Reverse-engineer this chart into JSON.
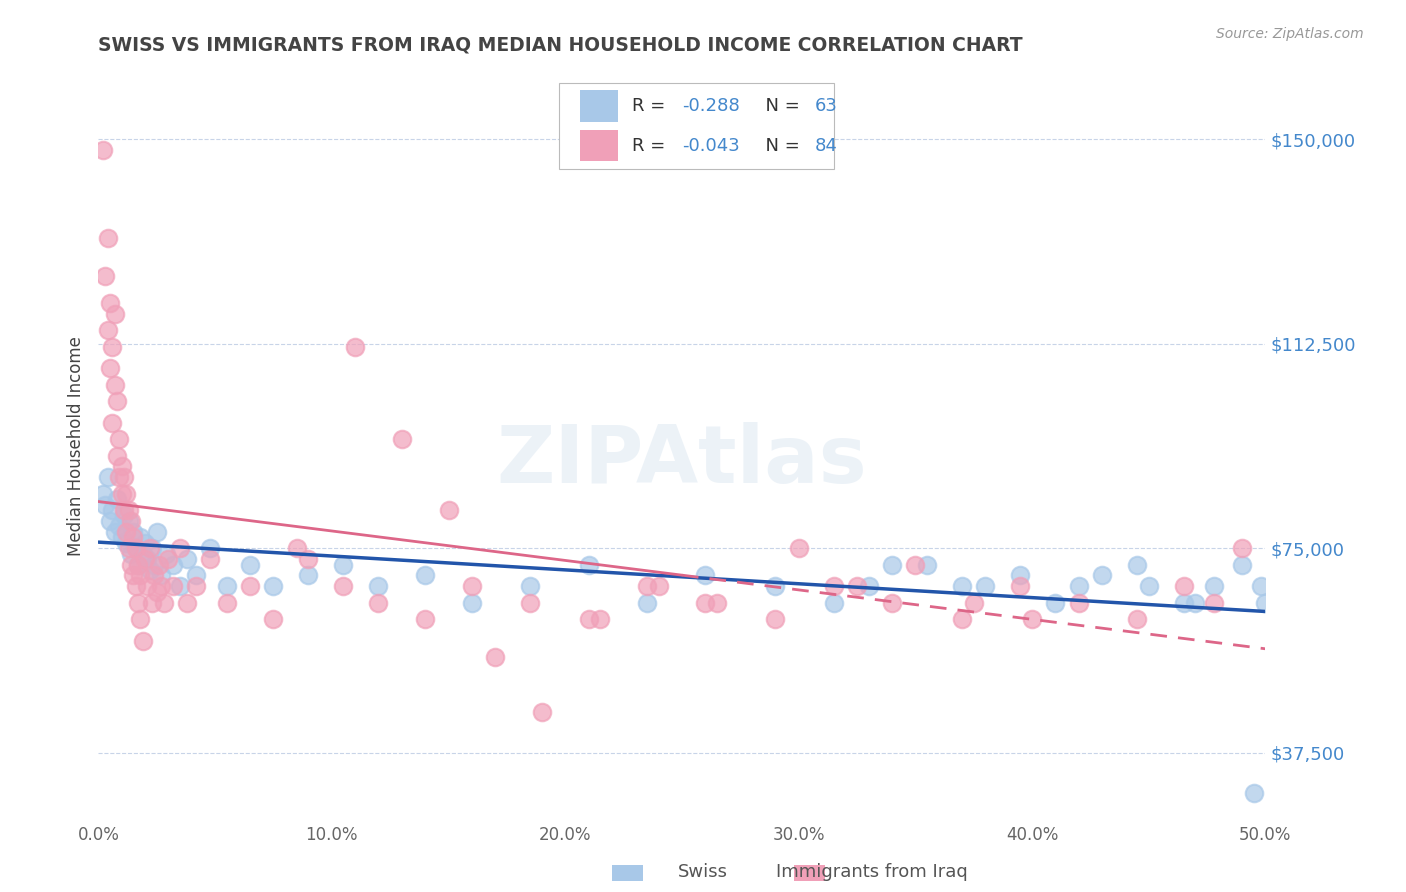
{
  "title": "SWISS VS IMMIGRANTS FROM IRAQ MEDIAN HOUSEHOLD INCOME CORRELATION CHART",
  "source": "Source: ZipAtlas.com",
  "ylabel": "Median Household Income",
  "xlim": [
    0.0,
    0.5
  ],
  "ylim": [
    25000,
    162500
  ],
  "yticks": [
    37500,
    75000,
    112500,
    150000
  ],
  "ytick_labels": [
    "$37,500",
    "$75,000",
    "$112,500",
    "$150,000"
  ],
  "xticks": [
    0.0,
    0.1,
    0.2,
    0.3,
    0.4,
    0.5
  ],
  "xtick_labels": [
    "0.0%",
    "10.0%",
    "20.0%",
    "30.0%",
    "40.0%",
    "50.0%"
  ],
  "swiss_color": "#a8c8e8",
  "iraq_color": "#f0a0b8",
  "swiss_line_color": "#2255aa",
  "iraq_line_color": "#dd6688",
  "watermark": "ZIPAtlas",
  "background_color": "#ffffff",
  "grid_color": "#c8d4e8",
  "title_color": "#444444",
  "axis_label_color": "#444444",
  "ytick_color": "#4488cc",
  "xtick_color": "#666666",
  "r_value_color": "#4488cc",
  "legend_text_color": "#333333",
  "swiss_x": [
    0.002,
    0.003,
    0.004,
    0.005,
    0.006,
    0.007,
    0.008,
    0.009,
    0.01,
    0.011,
    0.012,
    0.013,
    0.014,
    0.015,
    0.016,
    0.017,
    0.018,
    0.019,
    0.02,
    0.021,
    0.022,
    0.023,
    0.024,
    0.025,
    0.027,
    0.029,
    0.032,
    0.035,
    0.038,
    0.042,
    0.048,
    0.055,
    0.065,
    0.075,
    0.09,
    0.105,
    0.12,
    0.14,
    0.16,
    0.185,
    0.21,
    0.235,
    0.26,
    0.29,
    0.315,
    0.34,
    0.37,
    0.395,
    0.42,
    0.445,
    0.465,
    0.478,
    0.49,
    0.498,
    0.5,
    0.33,
    0.355,
    0.38,
    0.41,
    0.43,
    0.45,
    0.47,
    0.495
  ],
  "swiss_y": [
    85000,
    83000,
    88000,
    80000,
    82000,
    78000,
    84000,
    79000,
    77000,
    81000,
    76000,
    80000,
    74000,
    78000,
    75000,
    72000,
    77000,
    74000,
    76000,
    73000,
    71000,
    75000,
    72000,
    78000,
    70000,
    74000,
    72000,
    68000,
    73000,
    70000,
    75000,
    68000,
    72000,
    68000,
    70000,
    72000,
    68000,
    70000,
    65000,
    68000,
    72000,
    65000,
    70000,
    68000,
    65000,
    72000,
    68000,
    70000,
    68000,
    72000,
    65000,
    68000,
    72000,
    68000,
    65000,
    68000,
    72000,
    68000,
    65000,
    70000,
    68000,
    65000,
    30000
  ],
  "iraq_x": [
    0.002,
    0.003,
    0.004,
    0.004,
    0.005,
    0.005,
    0.006,
    0.006,
    0.007,
    0.007,
    0.008,
    0.008,
    0.009,
    0.009,
    0.01,
    0.01,
    0.011,
    0.011,
    0.012,
    0.012,
    0.013,
    0.013,
    0.014,
    0.014,
    0.015,
    0.015,
    0.016,
    0.016,
    0.017,
    0.017,
    0.018,
    0.018,
    0.019,
    0.02,
    0.021,
    0.022,
    0.023,
    0.024,
    0.025,
    0.026,
    0.027,
    0.028,
    0.03,
    0.032,
    0.035,
    0.038,
    0.042,
    0.048,
    0.055,
    0.065,
    0.075,
    0.09,
    0.105,
    0.12,
    0.14,
    0.16,
    0.185,
    0.21,
    0.235,
    0.26,
    0.085,
    0.29,
    0.315,
    0.34,
    0.37,
    0.395,
    0.42,
    0.445,
    0.465,
    0.478,
    0.11,
    0.13,
    0.15,
    0.17,
    0.19,
    0.215,
    0.24,
    0.265,
    0.3,
    0.325,
    0.35,
    0.375,
    0.4,
    0.49
  ],
  "iraq_y": [
    148000,
    125000,
    115000,
    132000,
    108000,
    120000,
    98000,
    112000,
    105000,
    118000,
    92000,
    102000,
    88000,
    95000,
    85000,
    90000,
    82000,
    88000,
    78000,
    85000,
    75000,
    82000,
    72000,
    80000,
    70000,
    77000,
    68000,
    75000,
    65000,
    72000,
    62000,
    70000,
    58000,
    73000,
    68000,
    75000,
    65000,
    70000,
    67000,
    72000,
    68000,
    65000,
    73000,
    68000,
    75000,
    65000,
    68000,
    73000,
    65000,
    68000,
    62000,
    73000,
    68000,
    65000,
    62000,
    68000,
    65000,
    62000,
    68000,
    65000,
    75000,
    62000,
    68000,
    65000,
    62000,
    68000,
    65000,
    62000,
    68000,
    65000,
    112000,
    95000,
    82000,
    55000,
    45000,
    62000,
    68000,
    65000,
    75000,
    68000,
    72000,
    65000,
    62000,
    75000
  ]
}
